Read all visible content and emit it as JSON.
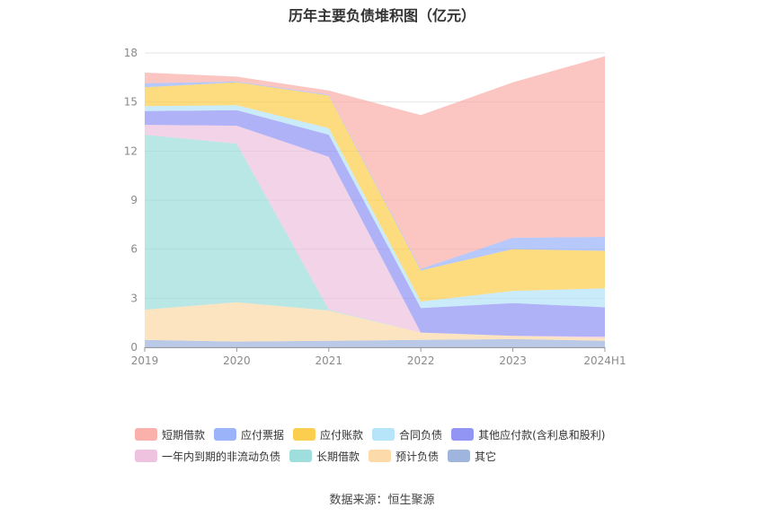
{
  "chart_data": {
    "type": "area",
    "stacked": true,
    "title": "历年主要负债堆积图（亿元）",
    "categories": [
      "2019",
      "2020",
      "2021",
      "2022",
      "2023",
      "2024H1"
    ],
    "ylim": [
      0,
      18
    ],
    "yticks": [
      0,
      3,
      6,
      9,
      12,
      15,
      18
    ],
    "grid": true,
    "legend_position": "bottom",
    "series": [
      {
        "name": "其它",
        "color": "#8fa8d8",
        "values": [
          0.45,
          0.35,
          0.4,
          0.45,
          0.5,
          0.4
        ]
      },
      {
        "name": "预计负债",
        "color": "#fcd49b",
        "values": [
          1.85,
          2.4,
          1.85,
          0.45,
          0.2,
          0.15
        ]
      },
      {
        "name": "长期借款",
        "color": "#8dd8d6",
        "values": [
          10.7,
          9.7,
          0.05,
          0.0,
          0.0,
          0.0
        ]
      },
      {
        "name": "一年内到期的非流动负债",
        "color": "#ebb8da",
        "values": [
          0.6,
          1.1,
          9.35,
          0.0,
          0.0,
          0.1
        ]
      },
      {
        "name": "其他应付款(含利息和股利)",
        "color": "#7f83f2",
        "values": [
          0.85,
          0.95,
          1.35,
          1.5,
          2.0,
          1.8
        ]
      },
      {
        "name": "合同负债",
        "color": "#a9dff7",
        "values": [
          0.3,
          0.3,
          0.4,
          0.4,
          0.75,
          1.15
        ]
      },
      {
        "name": "应付账款",
        "color": "#fbc531",
        "values": [
          1.15,
          1.4,
          2.0,
          1.9,
          2.55,
          2.3
        ]
      },
      {
        "name": "应付票据",
        "color": "#8aa6f7",
        "values": [
          0.25,
          0.05,
          0.05,
          0.1,
          0.7,
          0.85
        ]
      },
      {
        "name": "短期借款",
        "color": "#f9a39c",
        "values": [
          0.65,
          0.3,
          0.25,
          9.4,
          9.5,
          11.05
        ]
      }
    ]
  },
  "legend_rows": [
    [
      "短期借款",
      "应付票据",
      "应付账款",
      "合同负债",
      "其他应付款(含利息和股利)"
    ],
    [
      "一年内到期的非流动负债",
      "长期借款",
      "预计负债",
      "其它"
    ]
  ],
  "source": "数据来源：恒生聚源"
}
